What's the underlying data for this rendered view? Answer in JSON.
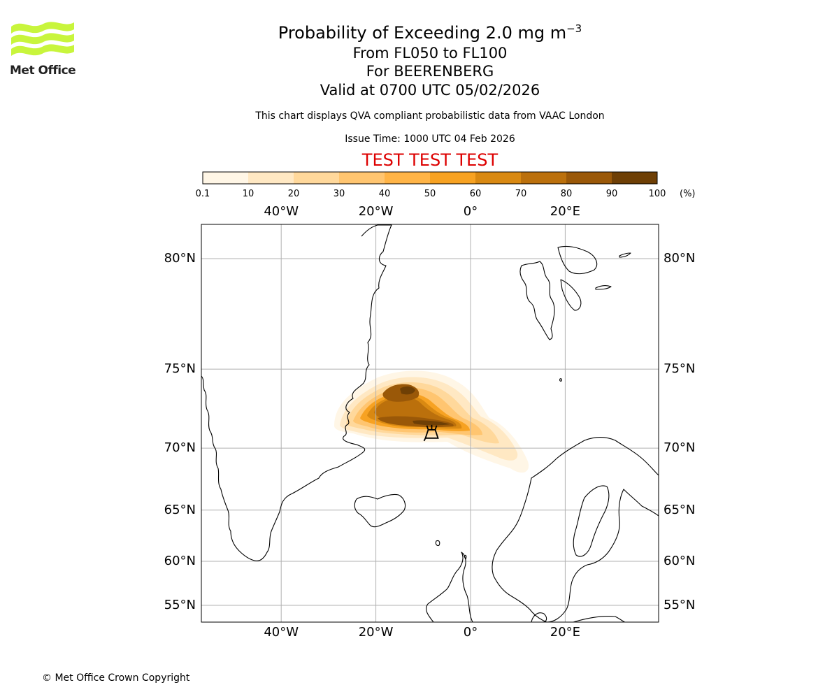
{
  "header": {
    "title_main": "Probability of Exceeding 2.0 mg m",
    "title_exponent": "−3",
    "level_range": "From FL050 to FL100",
    "volcano": "For BEERENBERG",
    "valid_time": "Valid at 0700 UTC 05/02/2026",
    "description": "This chart displays QVA compliant probabilistic data from VAAC London",
    "issue_time": "Issue Time: 1000 UTC 04 Feb 2026",
    "test_banner": "TEST TEST TEST"
  },
  "logo": {
    "text": "Met Office",
    "color": "#c8f53c"
  },
  "colorbar": {
    "ticks": [
      "0.1",
      "10",
      "20",
      "30",
      "40",
      "50",
      "60",
      "70",
      "80",
      "90",
      "100"
    ],
    "unit": "(%)",
    "colors": [
      "#fff6e6",
      "#ffe8c3",
      "#ffd89b",
      "#ffc570",
      "#ffb447",
      "#f7a222",
      "#d98912",
      "#bb700c",
      "#9a5808",
      "#6e3f05"
    ]
  },
  "map": {
    "lon_labels": [
      "40°W",
      "20°W",
      "0°",
      "20°E"
    ],
    "lat_labels": [
      "80°N",
      "75°N",
      "70°N",
      "65°N",
      "60°N",
      "55°N"
    ],
    "lon_values": [
      -40,
      -20,
      0,
      20
    ],
    "lat_values": [
      80,
      75,
      70,
      65,
      60,
      55
    ],
    "volcano_marker": {
      "name": "volcano-icon",
      "lon": -8.2,
      "lat": 71.1
    }
  },
  "footer": {
    "copyright": "© Met Office Crown Copyright"
  }
}
